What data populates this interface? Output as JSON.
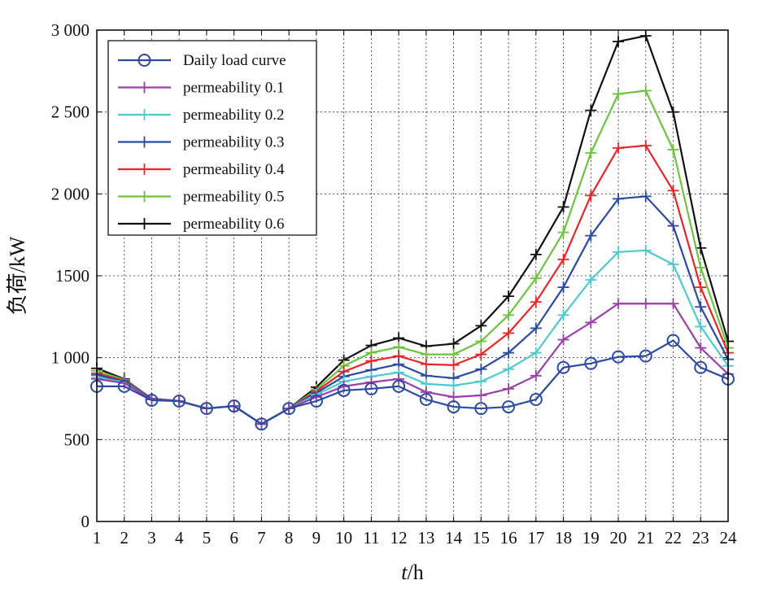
{
  "chart_data": {
    "type": "line",
    "title": "",
    "xlabel_italic": "t",
    "xlabel_rest": "/h",
    "ylabel": "负荷/kW",
    "x": [
      1,
      2,
      3,
      4,
      5,
      6,
      7,
      8,
      9,
      10,
      11,
      12,
      13,
      14,
      15,
      16,
      17,
      18,
      19,
      20,
      21,
      22,
      23,
      24
    ],
    "xlim": [
      1,
      24
    ],
    "ylim": [
      0,
      3000
    ],
    "yticks": [
      0,
      500,
      1000,
      1500,
      2000,
      2500,
      3000
    ],
    "ytick_labels": [
      "0",
      "500",
      "1 000",
      "1500",
      "2 000",
      "2 500",
      "3 000"
    ],
    "xtick_labels": [
      "1",
      "2",
      "3",
      "4",
      "5",
      "6",
      "7",
      "8",
      "9",
      "10",
      "11",
      "12",
      "13",
      "14",
      "15",
      "16",
      "17",
      "18",
      "19",
      "20",
      "21",
      "22",
      "23",
      "24"
    ],
    "grid": true,
    "legend_position": "top-left",
    "series": [
      {
        "name": "Daily load curve",
        "color": "#2b4aa3",
        "marker": "circle",
        "values": [
          825,
          825,
          740,
          735,
          690,
          705,
          595,
          690,
          735,
          800,
          810,
          825,
          745,
          700,
          690,
          700,
          745,
          940,
          965,
          1005,
          1010,
          1105,
          940,
          870
        ]
      },
      {
        "name": "permeability 0.1",
        "color": "#9b3fa6",
        "marker": "plus",
        "values": [
          870,
          845,
          745,
          735,
          690,
          705,
          595,
          690,
          760,
          825,
          850,
          870,
          790,
          760,
          770,
          810,
          890,
          1110,
          1215,
          1330,
          1330,
          1330,
          1060,
          900
        ]
      },
      {
        "name": "permeability 0.2",
        "color": "#4fc9cf",
        "marker": "plus",
        "values": [
          880,
          850,
          745,
          735,
          690,
          705,
          595,
          690,
          775,
          855,
          885,
          910,
          840,
          830,
          855,
          930,
          1030,
          1260,
          1475,
          1645,
          1655,
          1570,
          1190,
          950
        ]
      },
      {
        "name": "permeability 0.3",
        "color": "#2b4aa3",
        "marker": "plus",
        "values": [
          895,
          855,
          750,
          735,
          690,
          705,
          595,
          690,
          785,
          885,
          925,
          960,
          890,
          875,
          930,
          1030,
          1180,
          1430,
          1745,
          1970,
          1985,
          1805,
          1310,
          990
        ]
      },
      {
        "name": "permeability 0.4",
        "color": "#e8262a",
        "marker": "plus",
        "values": [
          905,
          860,
          750,
          735,
          690,
          705,
          595,
          690,
          795,
          915,
          980,
          1010,
          960,
          955,
          1020,
          1150,
          1340,
          1600,
          1990,
          2280,
          2295,
          2020,
          1430,
          1030
        ]
      },
      {
        "name": "permeability 0.5",
        "color": "#6cc43e",
        "marker": "plus",
        "values": [
          920,
          865,
          750,
          735,
          690,
          705,
          595,
          690,
          805,
          950,
          1030,
          1065,
          1020,
          1020,
          1100,
          1260,
          1485,
          1765,
          2250,
          2610,
          2630,
          2270,
          1550,
          1060
        ]
      },
      {
        "name": "permeability 0.6",
        "color": "#111111",
        "marker": "plus",
        "values": [
          935,
          870,
          750,
          735,
          690,
          705,
          595,
          690,
          820,
          985,
          1075,
          1120,
          1070,
          1085,
          1195,
          1375,
          1630,
          1920,
          2510,
          2930,
          2965,
          2500,
          1670,
          1100
        ]
      }
    ]
  }
}
